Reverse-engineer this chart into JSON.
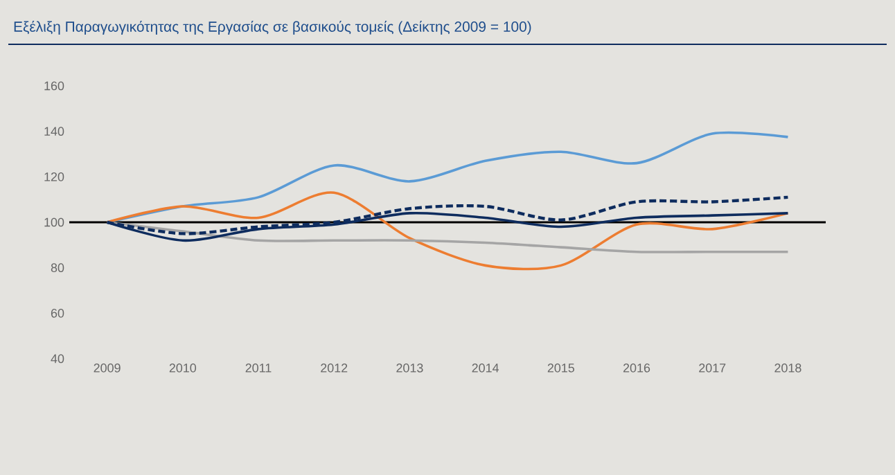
{
  "chart_data": {
    "type": "line",
    "title": "Εξέλιξη Παραγωγικότητας της Εργασίας σε βασικούς τομείς (Δείκτης 2009 = 100)",
    "categories": [
      "2009",
      "2010",
      "2011",
      "2012",
      "2013",
      "2014",
      "2015",
      "2016",
      "2017",
      "2018"
    ],
    "series": [
      {
        "color": "#5b9bd5",
        "values": [
          100,
          107,
          111,
          125,
          118,
          127,
          131,
          126,
          139,
          137.5
        ]
      },
      {
        "color": "#ed7d31",
        "values": [
          100,
          107,
          102,
          113,
          93,
          81,
          81,
          99,
          97,
          104
        ]
      },
      {
        "color": "#a5a5a5",
        "values": [
          100,
          96,
          92,
          92,
          92,
          91,
          89,
          87,
          87,
          87
        ]
      },
      {
        "color": "#0e2c5e",
        "values": [
          100,
          92,
          97,
          99,
          104,
          102,
          98,
          102,
          103,
          104
        ]
      },
      {
        "color": "#0e2c5e",
        "line_style": "dashed",
        "values": [
          100,
          95,
          98,
          100,
          106,
          107,
          101,
          109,
          109,
          111
        ]
      }
    ],
    "ylim": [
      40,
      160
    ],
    "yticks": [
      40,
      60,
      80,
      100,
      120,
      140,
      160
    ],
    "ref_lines": [
      {
        "axis": "y",
        "value": 100,
        "color": "#000000"
      }
    ],
    "grid": false,
    "marker": "none",
    "line_style": "solid"
  }
}
